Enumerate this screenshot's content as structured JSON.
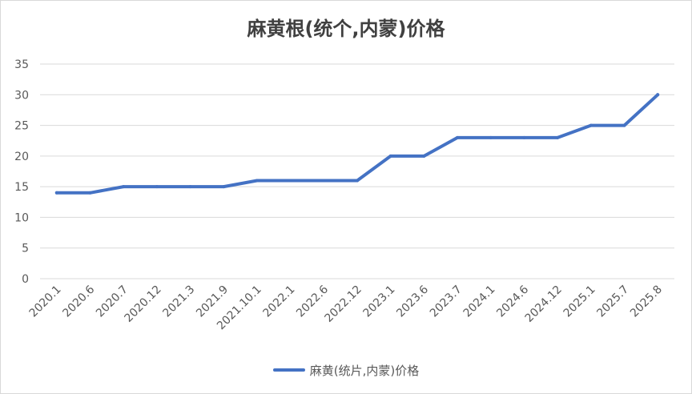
{
  "chart_data": {
    "type": "line",
    "title": "麻黄根(统个,内蒙)价格",
    "categories": [
      "2020.1",
      "2020.6",
      "2020.7",
      "2020.12",
      "2021.3",
      "2021.9",
      "2021.10.1",
      "2022.1",
      "2022.6",
      "2022.12",
      "2023.1",
      "2023.6",
      "2023.7",
      "2024.1",
      "2024.6",
      "2024.12",
      "2025.1",
      "2025.7",
      "2025.8"
    ],
    "series": [
      {
        "name": "麻黄(统片,内蒙)价格",
        "values": [
          14,
          14,
          15,
          15,
          15,
          15,
          16,
          16,
          16,
          16,
          20,
          20,
          23,
          23,
          23,
          23,
          25,
          25,
          30
        ]
      }
    ],
    "yticks": [
      "0",
      "5",
      "10",
      "15",
      "20",
      "25",
      "30",
      "35"
    ],
    "ylim": [
      0,
      35
    ],
    "grid": true,
    "legend": "bottom",
    "color": "#4472c4"
  }
}
